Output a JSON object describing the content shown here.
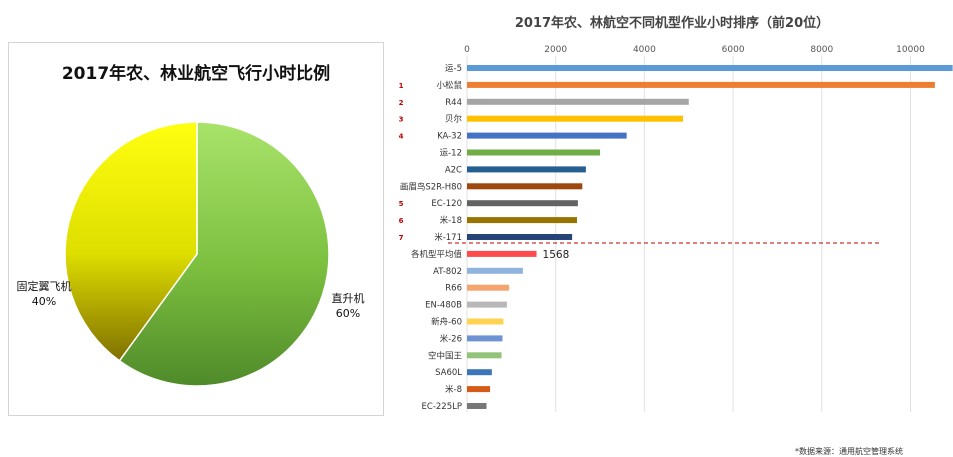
{
  "chart_data": [
    {
      "type": "pie",
      "title": "2017年农、林业航空飞行小时比例",
      "slices": [
        {
          "label": "直升机",
          "value": 60,
          "value_text": "60%",
          "color": "#7cbf3f"
        },
        {
          "label": "固定翼飞机",
          "value": 40,
          "value_text": "40%",
          "color": "#d8d800"
        }
      ]
    },
    {
      "type": "bar",
      "orientation": "horizontal",
      "title": "2017年农、林航空不同机型作业小时排序（前20位）",
      "xlim": [
        0,
        10500
      ],
      "xticks": [
        0,
        2000,
        4000,
        6000,
        8000,
        10000
      ],
      "grid": true,
      "categories": [
        "运-5",
        "小松鼠",
        "R44",
        "贝尔",
        "KA-32",
        "运-12",
        "A2C",
        "画眉鸟S2R-H80",
        "EC-120",
        "米-18",
        "米-171",
        "各机型平均值",
        "AT-802",
        "R66",
        "EN-480B",
        "新舟-60",
        "米-26",
        "空中国王",
        "SA60L",
        "米-8",
        "EC-225LP"
      ],
      "values": [
        10950,
        10550,
        5000,
        4870,
        3600,
        3000,
        2680,
        2600,
        2500,
        2480,
        2370,
        1568,
        1260,
        950,
        900,
        820,
        800,
        780,
        560,
        520,
        440
      ],
      "colors": [
        "#5b9bd5",
        "#ed7d31",
        "#a5a5a5",
        "#ffc000",
        "#4472c4",
        "#70ad47",
        "#255e91",
        "#9e480e",
        "#636363",
        "#997300",
        "#264478",
        "#ff4b4b",
        "#8fb4de",
        "#f4a46c",
        "#b8b8b8",
        "#ffd34f",
        "#6f92d3",
        "#94c47a",
        "#3a76b8",
        "#d55a18",
        "#777777"
      ],
      "rank_marks": [
        "",
        "1",
        "2",
        "3",
        "4",
        "",
        "",
        "",
        "5",
        "6",
        "7",
        "",
        "",
        "",
        "",
        "",
        "",
        "",
        "",
        "",
        ""
      ],
      "average_label": "1568"
    }
  ],
  "source_note": "*数据来源：通用航空管理系统"
}
